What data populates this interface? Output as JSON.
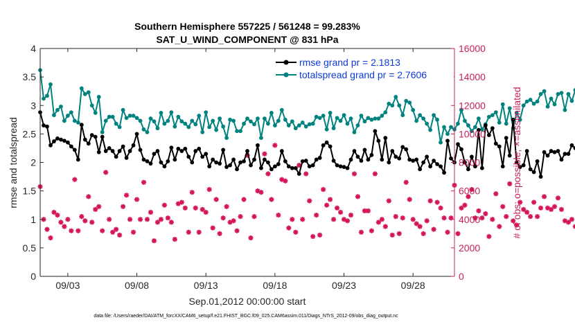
{
  "chart_data": {
    "type": "line",
    "title": "Southern Hemisphere 557225 / 561248 = 99.283%",
    "subtitle": "SAT_U_WIND_COMPONENT @ 831 hPa",
    "xlabel": "Sep.01,2012 00:00:00 start",
    "ylabel_left": "rmse and totalspread",
    "ylabel_right": "# of obs: o=possible; ×=assimilated",
    "footnote": "data file: /Users/raeder/DAI/ATM_forcXX/CAM6_setup/f.e21.FHIST_BGC.f09_025.CAM6assim.011/Diags_NTrS_2012-09/obs_diag_output.nc",
    "xlim": [
      1.0,
      31.0
    ],
    "ylim_left": [
      0,
      4
    ],
    "ylim_right": [
      0,
      16000
    ],
    "yticks_left": [
      "0",
      "0.5",
      "1",
      "1.5",
      "2",
      "2.5",
      "3",
      "3.5",
      "4"
    ],
    "yticks_right": [
      "0",
      "2000",
      "4000",
      "6000",
      "8000",
      "10000",
      "12000",
      "14000",
      "16000"
    ],
    "xticks": [
      {
        "label": "09/03",
        "day": 3
      },
      {
        "label": "09/08",
        "day": 8
      },
      {
        "label": "09/13",
        "day": 13
      },
      {
        "label": "09/18",
        "day": 18
      },
      {
        "label": "09/23",
        "day": 23
      },
      {
        "label": "09/28",
        "day": 28
      }
    ],
    "grid": false,
    "legend_position": "top-right",
    "colors": {
      "rmse": "#000000",
      "spread": "#00827f",
      "obs": "#d4145a",
      "right_axis": "#c81e5a",
      "legend_text": "#0b3bd6"
    },
    "series": [
      {
        "name": "rmse grand pr = 2.1813",
        "axis": "left",
        "x_start": 1.0,
        "x_step": 0.25,
        "values": [
          2.88,
          2.65,
          2.63,
          2.3,
          2.37,
          2.42,
          2.4,
          2.38,
          2.35,
          2.28,
          2.22,
          2.05,
          2.66,
          2.4,
          2.33,
          2.48,
          2.45,
          2.18,
          2.45,
          2.2,
          2.25,
          2.2,
          2.1,
          2.2,
          2.28,
          2.08,
          2.2,
          2.3,
          2.5,
          2.22,
          2.05,
          2.02,
          1.98,
          2.15,
          2.2,
          2.0,
          1.93,
          2.02,
          2.26,
          2.05,
          2.24,
          2.2,
          2.24,
          2.1,
          2.0,
          2.2,
          2.24,
          2.1,
          2.15,
          1.93,
          2.05,
          2.0,
          1.98,
          2.22,
          1.92,
          1.95,
          2.05,
          1.88,
          2.0,
          2.02,
          2.2,
          1.95,
          2.05,
          2.3,
          1.9,
          2.05,
          2.0,
          1.88,
          1.93,
          1.97,
          2.2,
          2.02,
          1.93,
          1.9,
          1.9,
          1.8,
          2.02,
          2.03,
          1.93,
          1.95,
          2.05,
          2.08,
          2.3,
          2.35,
          2.28,
          2.03,
          1.95,
          1.93,
          1.92,
          1.9,
          2.05,
          2.2,
          2.1,
          2.03,
          2.22,
          2.05,
          2.13,
          2.55,
          2.38,
          2.05,
          2.43,
          2.0,
          2.2,
          2.1,
          2.07,
          2.27,
          2.23,
          2.05,
          2.03,
          2.05,
          1.88,
          2.0,
          2.1,
          1.93,
          2.03,
          1.97,
          1.93,
          1.82,
          2.38,
          2.07,
          2.0,
          2.32,
          2.23,
          2.0,
          1.88,
          2.1,
          1.93,
          2.57,
          1.9,
          2.65,
          2.48,
          2.6,
          2.33,
          2.28,
          1.93,
          2.43,
          2.12,
          2.75,
          2.0,
          1.92,
          1.95,
          2.2,
          1.88,
          1.83,
          2.02,
          1.75,
          2.18,
          2.12,
          2.2,
          2.18,
          2.2,
          2.05,
          2.15,
          2.15,
          2.3,
          2.25,
          2.28,
          2.25
        ]
      },
      {
        "name": "totalspread grand pr = 2.7606",
        "axis": "left",
        "x_start": 1.0,
        "x_step": 0.25,
        "values": [
          3.62,
          3.12,
          3.17,
          3.37,
          2.83,
          2.92,
          2.98,
          2.73,
          2.82,
          2.88,
          2.73,
          2.7,
          3.3,
          3.2,
          3.23,
          3.0,
          2.87,
          3.15,
          2.53,
          2.73,
          2.8,
          2.8,
          2.68,
          2.62,
          2.92,
          2.78,
          2.82,
          2.82,
          2.78,
          2.73,
          2.58,
          2.53,
          2.77,
          2.72,
          2.6,
          2.87,
          2.68,
          2.73,
          2.88,
          2.63,
          2.8,
          2.72,
          2.68,
          2.62,
          2.73,
          2.67,
          2.82,
          2.53,
          2.88,
          2.62,
          2.73,
          2.57,
          2.77,
          2.63,
          2.43,
          2.75,
          2.73,
          2.55,
          2.55,
          2.68,
          2.77,
          2.72,
          2.67,
          2.77,
          2.43,
          2.77,
          2.68,
          2.87,
          2.65,
          2.73,
          2.92,
          2.75,
          2.65,
          2.72,
          2.6,
          2.65,
          2.7,
          2.63,
          2.67,
          2.68,
          2.8,
          2.78,
          2.82,
          2.58,
          2.87,
          2.6,
          2.78,
          2.73,
          2.83,
          2.68,
          2.77,
          2.53,
          2.65,
          2.82,
          2.72,
          2.78,
          2.75,
          2.77,
          2.77,
          2.82,
          2.88,
          3.03,
          3.0,
          3.15,
          3.0,
          2.83,
          3.08,
          3.05,
          2.92,
          2.73,
          2.83,
          2.77,
          2.68,
          2.57,
          2.83,
          2.75,
          2.35,
          2.62,
          2.5,
          2.62,
          2.58,
          2.68,
          2.92,
          2.73,
          2.65,
          2.55,
          2.62,
          2.77,
          2.58,
          2.67,
          2.8,
          2.83,
          2.88,
          2.7,
          3.02,
          2.68,
          2.95,
          2.6,
          2.87,
          2.75,
          3.0,
          3.07,
          3.1,
          3.03,
          3.07,
          3.2,
          3.25,
          2.98,
          3.12,
          3.02,
          3.2,
          3.22,
          2.92,
          3.2,
          3.08,
          3.27,
          2.95,
          3.07,
          3.17,
          3.22
        ]
      },
      {
        "name": "# of obs",
        "axis": "right",
        "x_start": 1.0,
        "x_step": 0.25,
        "values": [
          6300,
          4000,
          3300,
          2700,
          4500,
          4300,
          3800,
          3500,
          4000,
          3200,
          6800,
          3200,
          4200,
          3900,
          5600,
          3800,
          4700,
          4900,
          3200,
          7300,
          4000,
          3100,
          3300,
          2900,
          4900,
          5700,
          4000,
          3100,
          5400,
          4000,
          6600,
          4000,
          4500,
          2500,
          3800,
          4000,
          5000,
          4100,
          3800,
          2600,
          5100,
          5200,
          4800,
          3100,
          5900,
          4800,
          3100,
          4700,
          4500,
          6100,
          3400,
          5400,
          3000,
          4100,
          4900,
          3800,
          3900,
          3200,
          4200,
          5400,
          8500,
          2700,
          4200,
          6000,
          5900,
          8600,
          7200,
          5400,
          9200,
          4300,
          6800,
          6700,
          3400,
          4000,
          3100,
          7800,
          4000,
          7200,
          5300,
          2800,
          4300,
          2900,
          6100,
          5000,
          5400,
          4000,
          4800,
          4500,
          4000,
          3900,
          4300,
          7200,
          5600,
          3100,
          4600,
          4600,
          3200,
          7200,
          3800,
          4000,
          3500,
          5300,
          2900,
          4200,
          3000,
          4100,
          6600,
          5400,
          4000,
          3700,
          3500,
          3000,
          3900,
          5300,
          3300,
          5200,
          4800,
          4100,
          3100,
          4100,
          6400,
          3000,
          4800,
          5000,
          5600,
          6100,
          4100,
          4600,
          4100,
          4400,
          2800,
          4000,
          5800,
          3500,
          4900,
          4200,
          6500,
          3900,
          3600,
          5200,
          4700,
          4500,
          4200,
          5200,
          4200,
          4800,
          5600,
          4800,
          4700,
          4900,
          5500,
          4700,
          3900,
          3800,
          4000,
          3500,
          2900,
          2700,
          2600,
          0
        ]
      }
    ]
  }
}
